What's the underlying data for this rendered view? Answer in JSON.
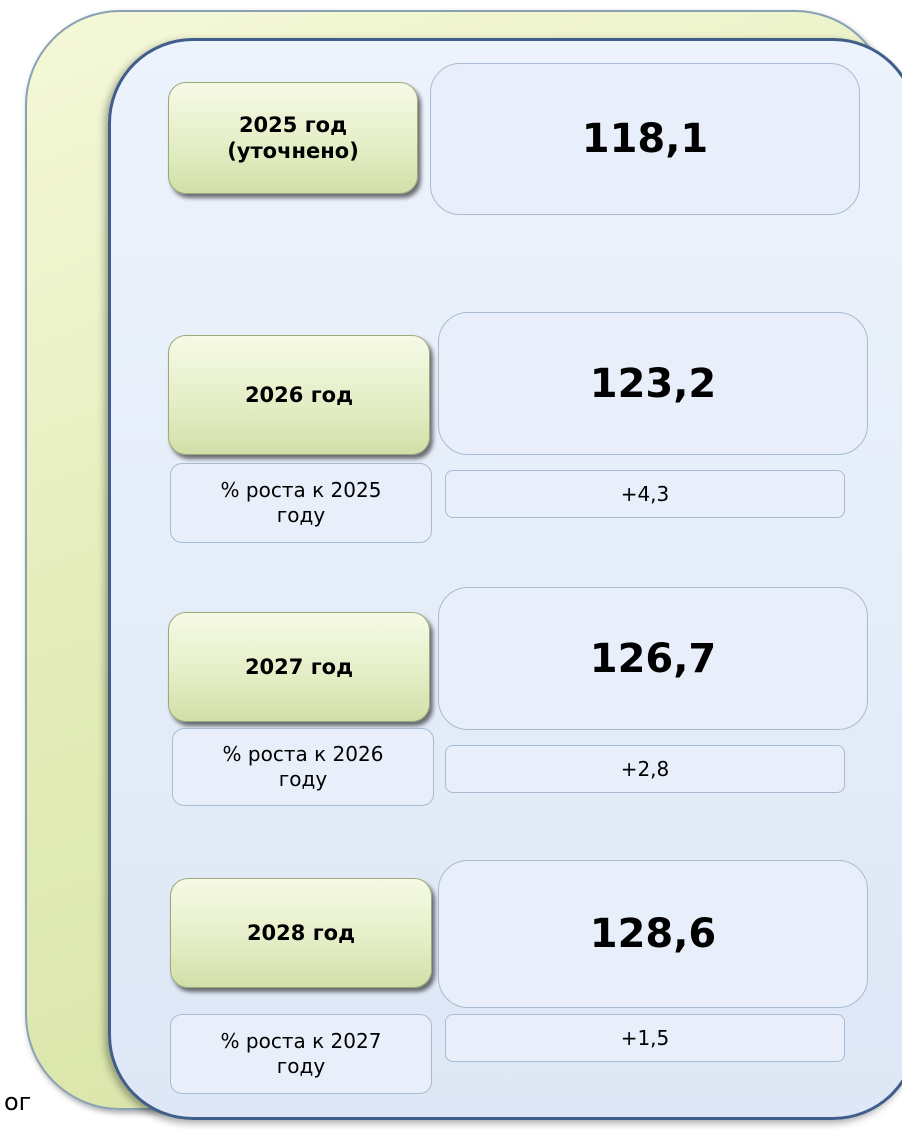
{
  "rows": [
    {
      "label": "2025 год (уточнено)",
      "value": "118,1"
    },
    {
      "label": "2026 год",
      "value": "123,2",
      "growth_label": "% роста к 2025 году",
      "growth": "+4,3"
    },
    {
      "label": "2027 год",
      "value": "126,7",
      "growth_label": "% роста к 2026 году",
      "growth": "+2,8"
    },
    {
      "label": "2028 год",
      "value": "128,6",
      "growth_label": "% роста к 2027 году",
      "growth": "+1,5"
    }
  ],
  "footnote": "ог"
}
